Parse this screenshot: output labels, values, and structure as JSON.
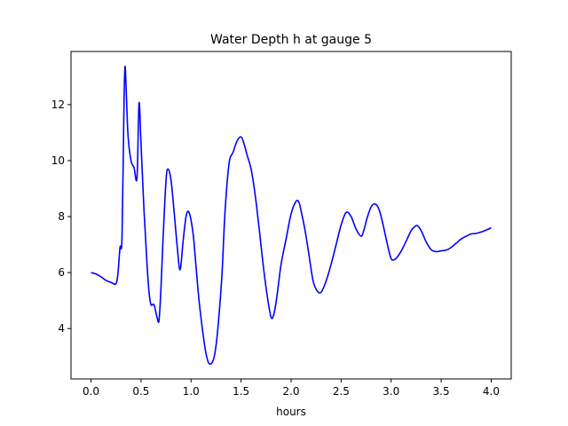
{
  "chart_data": {
    "type": "line",
    "title": "Water Depth h at gauge 5",
    "xlabel": "hours",
    "ylabel": "",
    "xlim": [
      -0.2,
      4.2
    ],
    "ylim": [
      2.2,
      13.9
    ],
    "grid": false,
    "xticks": [
      0.0,
      0.5,
      1.0,
      1.5,
      2.0,
      2.5,
      3.0,
      3.5,
      4.0
    ],
    "xtick_labels": [
      "0.0",
      "0.5",
      "1.0",
      "1.5",
      "2.0",
      "2.5",
      "3.0",
      "3.5",
      "4.0"
    ],
    "yticks": [
      4,
      6,
      8,
      10,
      12
    ],
    "ytick_labels": [
      "4",
      "6",
      "8",
      "10",
      "12"
    ],
    "series": [
      {
        "color": "#0000ff",
        "x": [
          0.0,
          0.05,
          0.1,
          0.15,
          0.2,
          0.25,
          0.27,
          0.29,
          0.31,
          0.33,
          0.34,
          0.35,
          0.37,
          0.4,
          0.43,
          0.46,
          0.48,
          0.5,
          0.53,
          0.56,
          0.58,
          0.6,
          0.63,
          0.66,
          0.68,
          0.7,
          0.72,
          0.75,
          0.77,
          0.8,
          0.83,
          0.86,
          0.89,
          0.92,
          0.95,
          0.98,
          1.02,
          1.05,
          1.08,
          1.12,
          1.15,
          1.18,
          1.22,
          1.25,
          1.28,
          1.31,
          1.34,
          1.38,
          1.42,
          1.46,
          1.5,
          1.53,
          1.56,
          1.6,
          1.64,
          1.68,
          1.72,
          1.76,
          1.8,
          1.83,
          1.86,
          1.9,
          1.95,
          2.0,
          2.05,
          2.08,
          2.1,
          2.14,
          2.18,
          2.22,
          2.26,
          2.3,
          2.35,
          2.4,
          2.45,
          2.5,
          2.55,
          2.6,
          2.65,
          2.7,
          2.73,
          2.76,
          2.8,
          2.84,
          2.88,
          2.92,
          2.96,
          3.0,
          3.04,
          3.08,
          3.12,
          3.16,
          3.2,
          3.23,
          3.26,
          3.3,
          3.35,
          3.4,
          3.45,
          3.5,
          3.55,
          3.6,
          3.65,
          3.7,
          3.75,
          3.8,
          3.85,
          3.9,
          3.95,
          4.0
        ],
        "y": [
          6.0,
          5.95,
          5.85,
          5.72,
          5.65,
          5.6,
          6.0,
          6.9,
          7.3,
          12.1,
          13.35,
          12.7,
          10.9,
          10.0,
          9.75,
          9.4,
          12.05,
          10.6,
          8.2,
          6.3,
          5.3,
          4.85,
          4.85,
          4.4,
          4.3,
          5.5,
          7.2,
          9.3,
          9.7,
          9.3,
          8.2,
          7.0,
          6.1,
          7.1,
          8.0,
          8.15,
          7.4,
          6.2,
          5.0,
          3.8,
          3.1,
          2.75,
          2.85,
          3.4,
          4.5,
          6.0,
          8.2,
          9.9,
          10.3,
          10.7,
          10.85,
          10.6,
          10.2,
          9.7,
          8.8,
          7.6,
          6.3,
          5.2,
          4.4,
          4.55,
          5.2,
          6.3,
          7.2,
          8.1,
          8.55,
          8.5,
          8.2,
          7.5,
          6.6,
          5.7,
          5.35,
          5.3,
          5.7,
          6.3,
          7.0,
          7.7,
          8.15,
          8.0,
          7.55,
          7.3,
          7.55,
          7.95,
          8.35,
          8.45,
          8.25,
          7.7,
          7.05,
          6.5,
          6.48,
          6.65,
          6.9,
          7.2,
          7.5,
          7.62,
          7.68,
          7.5,
          7.1,
          6.82,
          6.75,
          6.78,
          6.8,
          6.9,
          7.05,
          7.2,
          7.3,
          7.38,
          7.4,
          7.45,
          7.52,
          7.6
        ]
      }
    ]
  }
}
